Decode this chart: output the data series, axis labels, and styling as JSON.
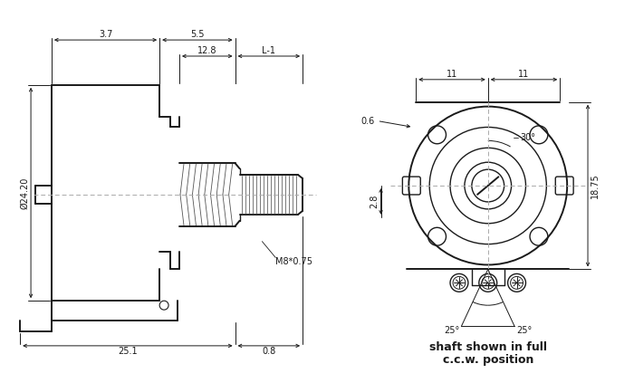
{
  "bg_color": "#ffffff",
  "line_color": "#1a1a1a",
  "dim_color": "#1a1a1a",
  "dashed_color": "#aaaaaa",
  "figsize": [
    7.0,
    4.23
  ],
  "dpi": 100,
  "annotations": {
    "dim_128": "12.8",
    "dim_L1": "L-1",
    "dim_37": "3.7",
    "dim_55": "5.5",
    "dim_phi": "Ø24.20",
    "dim_251": "25.1",
    "dim_08": "0.8",
    "dim_M8": "M8*0.75",
    "dim_11L": "11",
    "dim_11R": "11",
    "dim_30": "30°",
    "dim_06": "0.6",
    "dim_28": "2.8",
    "dim_1875": "18.75",
    "dim_25L": "25°",
    "dim_25R": "25°",
    "caption1": "shaft shown in full",
    "caption2": "c.c.w. position"
  }
}
